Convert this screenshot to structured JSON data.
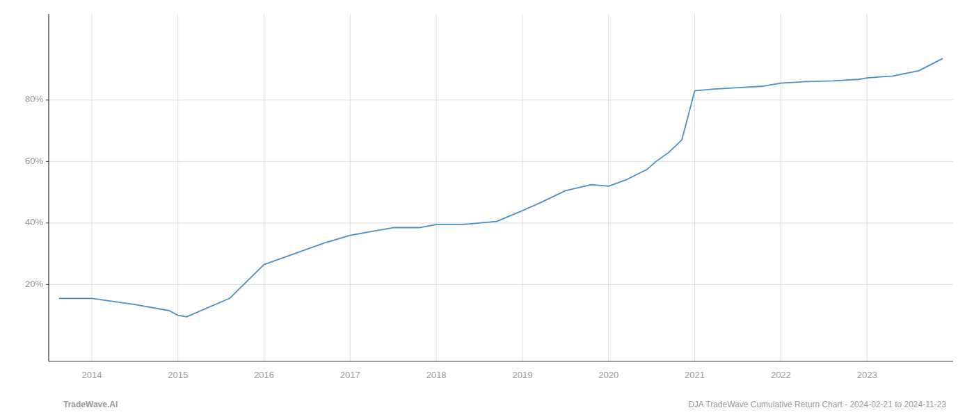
{
  "chart_data": {
    "type": "line",
    "x": [
      2013.62,
      2014.0,
      2014.5,
      2014.9,
      2015.0,
      2015.1,
      2015.6,
      2016.0,
      2016.3,
      2016.7,
      2017.0,
      2017.2,
      2017.5,
      2017.8,
      2018.0,
      2018.3,
      2018.7,
      2019.0,
      2019.2,
      2019.5,
      2019.8,
      2020.0,
      2020.2,
      2020.45,
      2020.55,
      2020.7,
      2020.85,
      2021.0,
      2021.2,
      2021.5,
      2021.8,
      2022.0,
      2022.3,
      2022.6,
      2022.9,
      2023.0,
      2023.3,
      2023.6,
      2023.88
    ],
    "values": [
      0.155,
      0.155,
      0.135,
      0.115,
      0.1,
      0.095,
      0.155,
      0.265,
      0.295,
      0.335,
      0.36,
      0.37,
      0.385,
      0.385,
      0.395,
      0.395,
      0.405,
      0.44,
      0.465,
      0.505,
      0.525,
      0.52,
      0.54,
      0.575,
      0.6,
      0.63,
      0.67,
      0.83,
      0.835,
      0.84,
      0.845,
      0.855,
      0.86,
      0.862,
      0.867,
      0.872,
      0.878,
      0.895,
      0.935
    ],
    "color": "#4a90c4",
    "xlim": [
      2013.5,
      2024.0
    ],
    "xticks": [
      2014,
      2015,
      2016,
      2017,
      2018,
      2019,
      2020,
      2021,
      2022,
      2023
    ],
    "ylim": [
      -0.05,
      1.08
    ],
    "yticks": [
      {
        "value": 0.2,
        "label": "20%"
      },
      {
        "value": 0.4,
        "label": "40%"
      },
      {
        "value": 0.6,
        "label": "60%"
      },
      {
        "value": 0.8,
        "label": "80%"
      }
    ],
    "grid": true,
    "annotations": [
      "TradeWave.AI",
      "DJA TradeWave Cumulative Return Chart - 2024-02-21 to 2024-11-23"
    ]
  }
}
